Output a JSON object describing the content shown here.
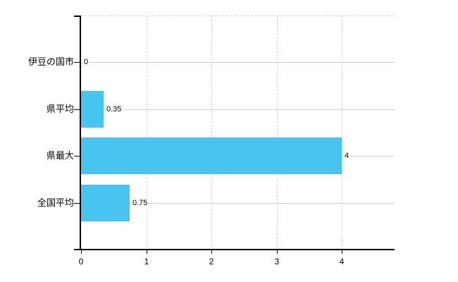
{
  "chart_data": {
    "type": "bar",
    "orientation": "horizontal",
    "title": "",
    "xlabel": "",
    "ylabel": "",
    "categories": [
      "伊豆の国市",
      "県平均",
      "県最大",
      "全国平均"
    ],
    "values": [
      0,
      0.35,
      4,
      0.75
    ],
    "value_labels": [
      "0",
      "0.35",
      "4",
      "0.75"
    ],
    "x_ticks": [
      0,
      1,
      2,
      3,
      4
    ],
    "x_tick_labels": [
      "0",
      "1",
      "2",
      "3",
      "4"
    ],
    "xlim": [
      0,
      4.81
    ],
    "grid": true,
    "legend": false,
    "bar_color": "#47c4f0"
  },
  "colors": {
    "background": "#ffffff",
    "bar": "#47c4f0",
    "axis": "#000000",
    "grid_solid": "#c9d2c9",
    "grid_dashed": "#d5d2d5",
    "text": "#000000"
  }
}
